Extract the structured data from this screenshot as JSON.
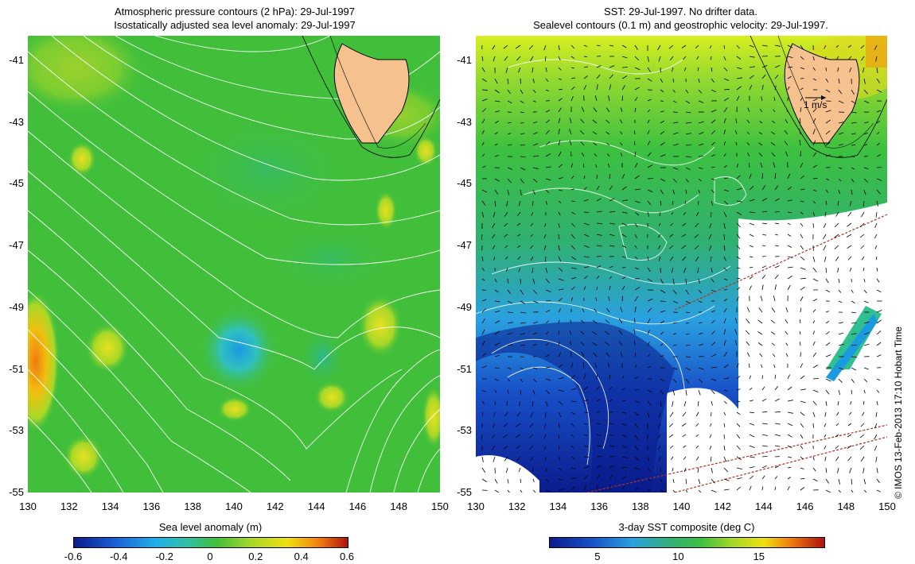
{
  "left_panel": {
    "title_line1": "Atmospheric pressure contours (2 hPa): 29-Jul-1997",
    "title_line2": "Isostatically adjusted sea level anomaly: 29-Jul-1997",
    "colorbar_label": "Sea level anomaly (m)",
    "colorbar_ticks": [
      "-0.6",
      "-0.4",
      "-0.2",
      "0",
      "0.2",
      "0.4",
      "0.6"
    ],
    "colorbar_range": [
      -0.6,
      0.6
    ]
  },
  "right_panel": {
    "title_line1": "SST: 29-Jul-1997. No drifter data.",
    "title_line2": "Sealevel contours (0.1 m) and geostrophic velocity: 29-Jul-1997.",
    "velocity_scale_label": "1 m/s",
    "colorbar_label": "3-day SST composite (deg C)",
    "colorbar_ticks": [
      "5",
      "10",
      "15"
    ],
    "colorbar_range": [
      2,
      19
    ]
  },
  "axes": {
    "lat_ticks": [
      "-41",
      "-43",
      "-45",
      "-47",
      "-49",
      "-51",
      "-53",
      "-55"
    ],
    "lon_ticks": [
      "130",
      "132",
      "134",
      "136",
      "138",
      "140",
      "142",
      "144",
      "146",
      "148",
      "150"
    ],
    "lat_range": [
      -55,
      -40.2
    ],
    "lon_range": [
      130,
      150
    ]
  },
  "credit": "© IMOS 13-Feb-2013 17:10 Hobart Time",
  "colors": {
    "land": "#f5c28f",
    "contour": "#ffffff",
    "ship_track": "#b03020",
    "sla_background": "#41bf3b",
    "sst_background": "#9ed92e"
  }
}
